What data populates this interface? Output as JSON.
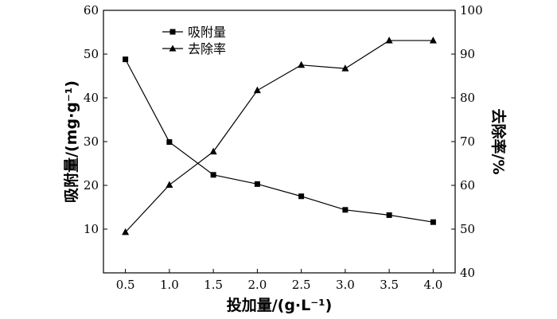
{
  "chart_data": {
    "type": "line",
    "x": [
      0.5,
      1.0,
      1.5,
      2.0,
      2.5,
      3.0,
      3.5,
      4.0
    ],
    "x_tick_labels": [
      "0.5",
      "1.0",
      "1.5",
      "2.0",
      "2.5",
      "3.0",
      "3.5",
      "4.0"
    ],
    "xlabel": "投加量/(g·L⁻¹)",
    "xlim": [
      0.25,
      4.25
    ],
    "ylabel_left": "吸附量/(mg·g⁻¹)",
    "ylim_left": [
      0,
      60
    ],
    "y_left_ticks": [
      "10",
      "20",
      "30",
      "40",
      "50",
      "60"
    ],
    "ylabel_right": "去除率/%",
    "ylim_right": [
      40,
      100
    ],
    "y_right_ticks": [
      "40",
      "50",
      "60",
      "70",
      "80",
      "90",
      "100"
    ],
    "grid": false,
    "legend_position": "top-left-center",
    "series": [
      {
        "name": "吸附量",
        "axis": "left",
        "marker": "square",
        "values": [
          48.8,
          29.9,
          22.4,
          20.3,
          17.5,
          14.4,
          13.2,
          11.6
        ]
      },
      {
        "name": "去除率",
        "axis": "right",
        "marker": "triangle",
        "values": [
          49.3,
          60.1,
          67.7,
          81.7,
          87.5,
          86.7,
          93.1,
          93.1
        ]
      }
    ]
  }
}
